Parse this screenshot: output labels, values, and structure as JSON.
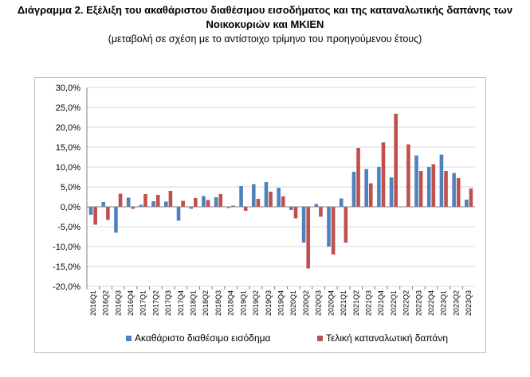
{
  "title_line1": "Διάγραμμα 2. Εξέλιξη του ακαθάριστου διαθέσιμου εισοδήματος και της καταναλωτικής δαπάνης των",
  "title_line2": "Νοικοκυριών και ΜΚΙΕΝ",
  "subtitle": "(μεταβολή σε σχέση με το αντίστοιχο τρίμηνο του προηγούμενου έτους)",
  "colors": {
    "series1": "#4f81bd",
    "series2": "#c0504d",
    "grid": "#d9d9d9",
    "axis": "#808080"
  },
  "chart_data": {
    "type": "bar",
    "grid": true,
    "legend_position": "bottom",
    "ylim": [
      -20,
      30
    ],
    "yticks": [
      -20,
      -15,
      -10,
      -5,
      0,
      5,
      10,
      15,
      20,
      25,
      30
    ],
    "ytick_labels": [
      "-20,0%",
      "-15,0%",
      "-10,0%",
      "-5,0%",
      "0,0%",
      "5,0%",
      "10,0%",
      "15,0%",
      "20,0%",
      "25,0%",
      "30,0%"
    ],
    "categories": [
      "2016Q1",
      "2016Q2",
      "2016Q3",
      "2016Q4",
      "2017Q1",
      "2017Q2",
      "2017Q3",
      "2017Q4",
      "2018Q1",
      "2018Q2",
      "2018Q3",
      "2018Q4",
      "2019Q1",
      "2019Q2",
      "2019Q3",
      "2019Q4",
      "2020Q1",
      "2020Q2",
      "2020Q3",
      "2020Q4",
      "2021Q1",
      "2021Q2",
      "2021Q3",
      "2021Q4",
      "2022Q1",
      "2022Q2",
      "2022Q3",
      "2022Q4",
      "2023Q1",
      "2023Q2",
      "2023Q3"
    ],
    "series": [
      {
        "name": "Ακαθάριστο διαθέσιμο εισόδημα",
        "values": [
          -2.0,
          1.2,
          -6.5,
          2.3,
          0.5,
          1.4,
          1.3,
          -3.5,
          -0.5,
          2.7,
          2.4,
          -0.3,
          5.2,
          5.7,
          6.2,
          4.8,
          -0.8,
          -9.0,
          0.7,
          -10.0,
          2.1,
          8.8,
          9.5,
          10.0,
          7.4,
          0.0,
          12.9,
          10.0,
          13.1,
          8.5,
          1.8
        ]
      },
      {
        "name": "Τελική καταναλωτική δαπάνη",
        "values": [
          -4.5,
          -3.3,
          3.3,
          -0.5,
          3.2,
          3.0,
          4.0,
          1.5,
          2.2,
          1.7,
          3.2,
          0.3,
          -1.0,
          2.0,
          3.8,
          2.6,
          -2.9,
          -15.5,
          -2.5,
          -12.0,
          -9.0,
          14.8,
          5.9,
          16.2,
          23.4,
          15.7,
          9.0,
          10.7,
          9.0,
          7.2,
          4.6
        ]
      }
    ]
  }
}
